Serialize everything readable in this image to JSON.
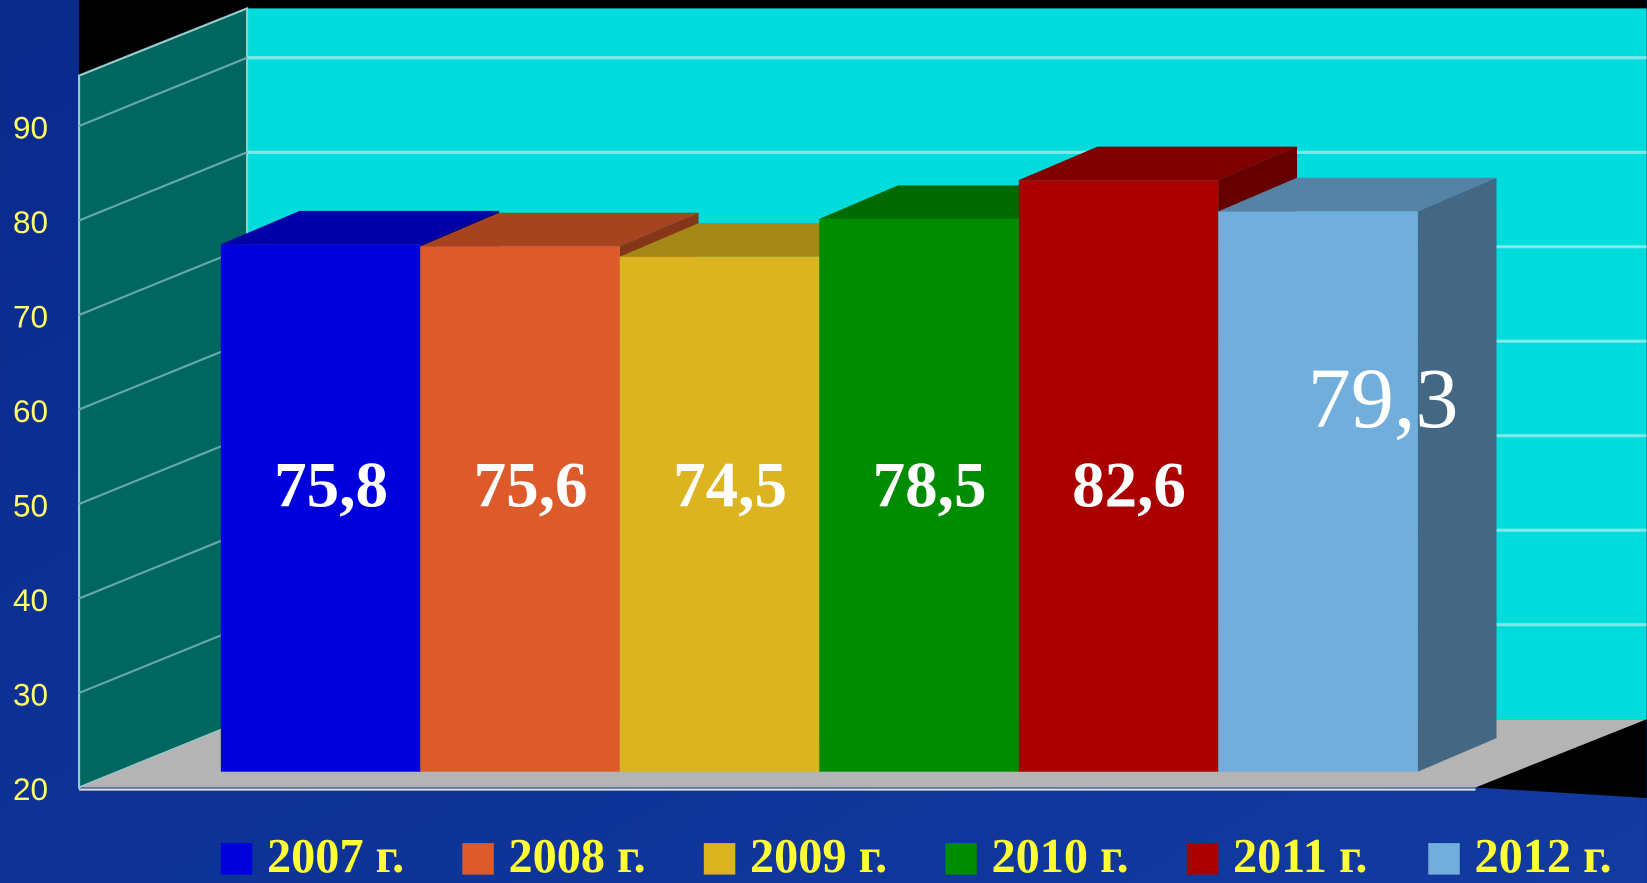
{
  "chart_data": {
    "type": "bar3d",
    "categories": [
      "2007 г.",
      "2008 г.",
      "2009 г.",
      "2010 г.",
      "2011 г.",
      "2012 г."
    ],
    "values": [
      75.8,
      75.6,
      74.5,
      78.5,
      82.6,
      79.3
    ],
    "value_labels": [
      "75,8",
      "75,6",
      "74,5",
      "78,5",
      "82,6",
      "79,3"
    ],
    "colors": [
      "#0000dd",
      "#dd5a2a",
      "#dcb420",
      "#008c00",
      "#aa0000",
      "#72aedc"
    ],
    "ylim": [
      20,
      95
    ],
    "yticks": [
      20,
      30,
      40,
      50,
      60,
      70,
      80,
      90
    ],
    "grid": true,
    "legend": "bottom"
  }
}
